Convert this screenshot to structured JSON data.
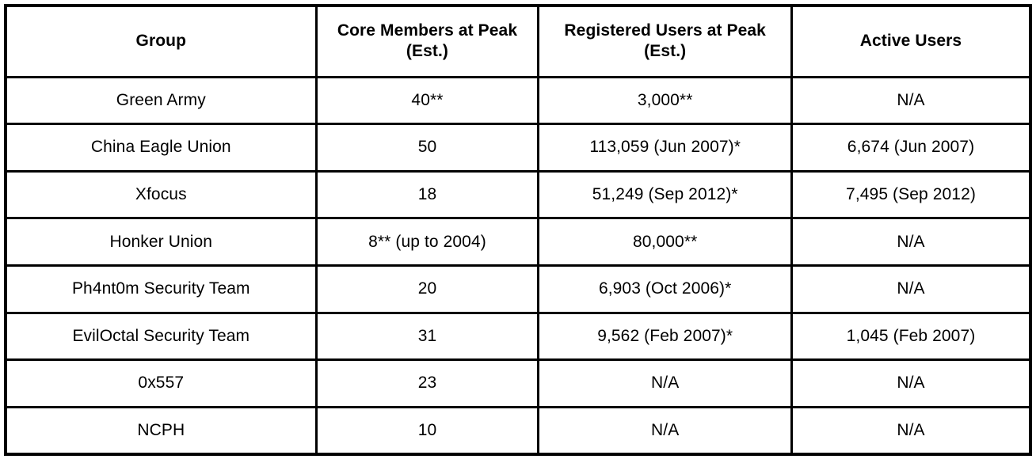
{
  "table": {
    "name": "hacker-groups-membership-table",
    "border_color": "#000000",
    "text_color": "#000000",
    "background_color": "#ffffff",
    "columns": [
      "Group",
      "Core Members at Peak (Est.)",
      "Registered Users at Peak (Est.)",
      "Active Users"
    ],
    "column_widths_pct": [
      30.3,
      21.7,
      24.7,
      23.3
    ],
    "rows": [
      [
        "Green Army",
        "40**",
        "3,000**",
        "N/A"
      ],
      [
        "China Eagle Union",
        "50",
        "113,059 (Jun 2007)*",
        "6,674 (Jun 2007)"
      ],
      [
        "Xfocus",
        "18",
        "51,249 (Sep 2012)*",
        "7,495 (Sep 2012)"
      ],
      [
        "Honker Union",
        "8** (up to 2004)",
        "80,000**",
        "N/A"
      ],
      [
        "Ph4nt0m Security Team",
        "20",
        "6,903 (Oct 2006)*",
        "N/A"
      ],
      [
        "EvilOctal Security Team",
        "31",
        "9,562 (Feb 2007)*",
        "1,045 (Feb 2007)"
      ],
      [
        "0x557",
        "23",
        "N/A",
        "N/A"
      ],
      [
        "NCPH",
        "10",
        "N/A",
        "N/A"
      ]
    ]
  }
}
